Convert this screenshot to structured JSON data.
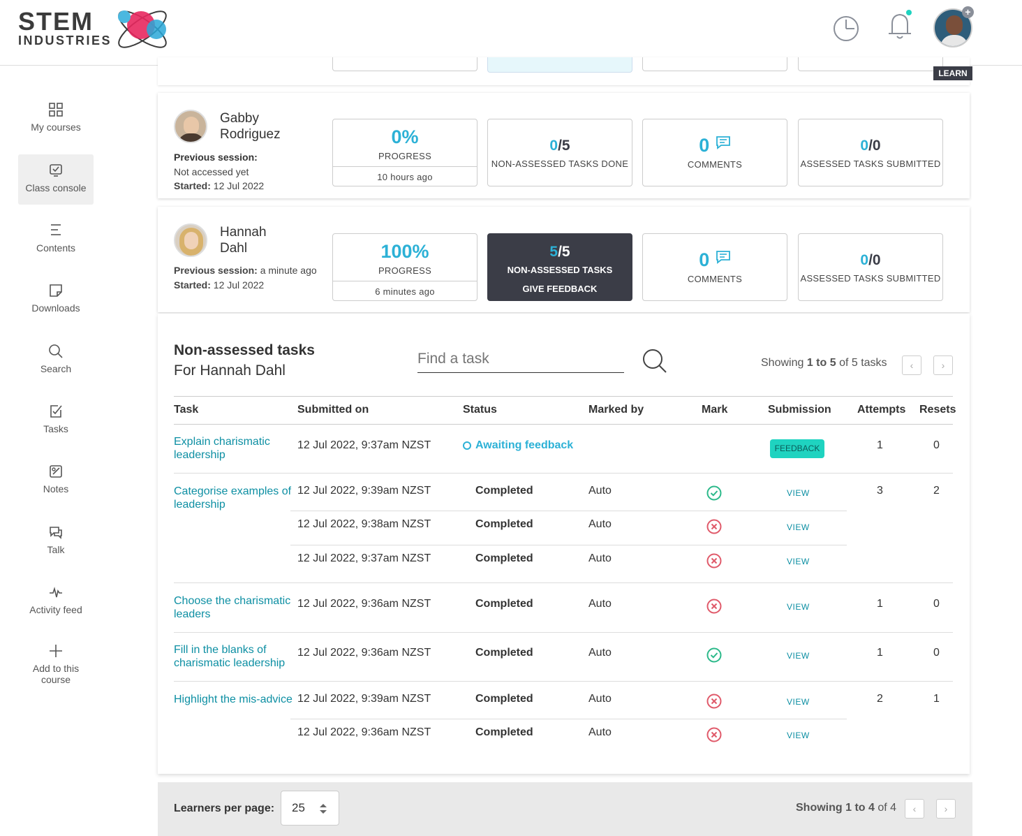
{
  "header": {
    "logo_line1": "STEM",
    "logo_line2": "INDUSTRIES",
    "learn_badge": "LEARN"
  },
  "sidebar": {
    "items": [
      {
        "label": "My courses",
        "icon": "grid-icon"
      },
      {
        "label": "Class console",
        "icon": "checkbox-icon"
      },
      {
        "label": "Contents",
        "icon": "list-icon"
      },
      {
        "label": "Downloads",
        "icon": "note-icon"
      },
      {
        "label": "Search",
        "icon": "search-icon"
      },
      {
        "label": "Tasks",
        "icon": "edit-task-icon"
      },
      {
        "label": "Notes",
        "icon": "notes-icon"
      },
      {
        "label": "Talk",
        "icon": "chat-icon"
      },
      {
        "label": "Activity feed",
        "icon": "pulse-icon"
      },
      {
        "label": "Add to this course",
        "icon": "plus-icon"
      }
    ]
  },
  "learners": [
    {
      "first": "Gabby",
      "last": "Rodriguez",
      "prev_label": "Previous session:",
      "prev_value": "Not accessed yet",
      "started_label": "Started:",
      "started_value": "12 Jul 2022",
      "progress": "0%",
      "progress_label": "PROGRESS",
      "progress_time": "10 hours ago",
      "nat_done": "0",
      "nat_total": "/5",
      "nat_label": "NON-ASSESSED TASKS DONE",
      "comments": "0",
      "comments_label": "COMMENTS",
      "at_done": "0",
      "at_total": "/0",
      "at_label": "ASSESSED TASKS SUBMITTED"
    },
    {
      "first": "Hannah",
      "last": "Dahl",
      "prev_label": "Previous session:",
      "prev_value": "a minute ago",
      "started_label": "Started:",
      "started_value": "12 Jul 2022",
      "progress": "100%",
      "progress_label": "PROGRESS",
      "progress_time": "6 minutes ago",
      "nat_done": "5",
      "nat_total": "/5",
      "nat_label": "NON-ASSESSED TASKS",
      "nat_action": "GIVE FEEDBACK",
      "comments": "0",
      "comments_label": "COMMENTS",
      "at_done": "0",
      "at_total": "/0",
      "at_label": "ASSESSED TASKS SUBMITTED"
    }
  ],
  "tasks_panel": {
    "title": "Non-assessed tasks",
    "subtitle": "For Hannah Dahl",
    "search_placeholder": "Find a task",
    "showing_prefix": "Showing ",
    "showing_range": "1 to 5",
    "showing_suffix": " of 5 tasks",
    "columns": [
      "Task",
      "Submitted on",
      "Status",
      "Marked by",
      "Mark",
      "Submission",
      "Attempts",
      "Resets"
    ],
    "awaiting": "Awaiting feedback",
    "feedback_btn": "FEEDBACK",
    "view": "VIEW",
    "rows": [
      {
        "task": "Explain charismatic leadership",
        "subs": [
          {
            "date": "12 Jul 2022, 9:37am NZST",
            "status": "Awaiting feedback",
            "by": "",
            "mark": ""
          }
        ],
        "attempts": "1",
        "resets": "0"
      },
      {
        "task": "Categorise examples of leadership",
        "subs": [
          {
            "date": "12 Jul 2022, 9:39am NZST",
            "status": "Completed",
            "by": "Auto",
            "mark": "correct"
          },
          {
            "date": "12 Jul 2022, 9:38am NZST",
            "status": "Completed",
            "by": "Auto",
            "mark": "incorrect"
          },
          {
            "date": "12 Jul 2022, 9:37am NZST",
            "status": "Completed",
            "by": "Auto",
            "mark": "incorrect"
          }
        ],
        "attempts": "3",
        "resets": "2"
      },
      {
        "task": "Choose the charismatic leaders",
        "subs": [
          {
            "date": "12 Jul 2022, 9:36am NZST",
            "status": "Completed",
            "by": "Auto",
            "mark": "incorrect"
          }
        ],
        "attempts": "1",
        "resets": "0"
      },
      {
        "task": "Fill in the blanks of charismatic leadership",
        "subs": [
          {
            "date": "12 Jul 2022, 9:36am NZST",
            "status": "Completed",
            "by": "Auto",
            "mark": "correct"
          }
        ],
        "attempts": "1",
        "resets": "0"
      },
      {
        "task": "Highlight the mis-advice",
        "subs": [
          {
            "date": "12 Jul 2022, 9:39am NZST",
            "status": "Completed",
            "by": "Auto",
            "mark": "incorrect"
          },
          {
            "date": "12 Jul 2022, 9:36am NZST",
            "status": "Completed",
            "by": "Auto",
            "mark": "incorrect"
          }
        ],
        "attempts": "2",
        "resets": "1"
      }
    ]
  },
  "footer": {
    "per_page_label": "Learners per page:",
    "per_page_value": "25",
    "showing_prefix": "Showing ",
    "showing_range": "1 to 4",
    "showing_suffix": " of 4"
  },
  "colors": {
    "accent": "#2cb1d6",
    "link": "#0d8fa3",
    "feedback": "#1fd3c0",
    "dark_box": "#3b3d47"
  }
}
